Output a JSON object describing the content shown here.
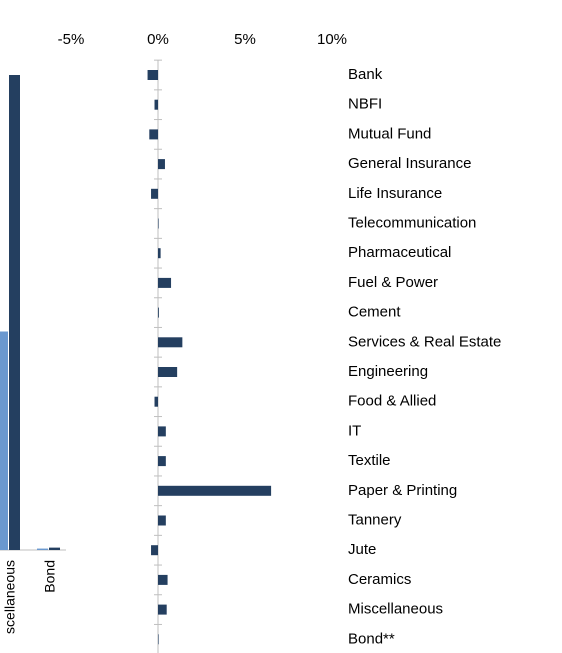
{
  "chart_data": [
    {
      "type": "hbar",
      "categories": [
        "Bank",
        "NBFI",
        "Mutual Fund",
        "General Insurance",
        "Life Insurance",
        "Telecommunication",
        "Pharmaceutical",
        "Fuel & Power",
        "Cement",
        "Services & Real Estate",
        "Engineering",
        "Food & Allied",
        "IT",
        "Textile",
        "Paper & Printing",
        "Tannery",
        "Jute",
        "Ceramics",
        "Miscellaneous",
        "Bond**"
      ],
      "values": [
        -0.6,
        -0.2,
        -0.5,
        0.4,
        -0.4,
        0,
        0.15,
        0.75,
        0.05,
        1.4,
        1.1,
        -0.2,
        0.45,
        0.45,
        6.5,
        0.45,
        -0.4,
        0.55,
        0.5,
        0
      ],
      "color": "#243f60",
      "xlim": [
        -9,
        11
      ],
      "xticks": [
        {
          "value": -5,
          "label": "-5%"
        },
        {
          "value": 0,
          "label": "0%"
        },
        {
          "value": 5,
          "label": "5%"
        },
        {
          "value": 10,
          "label": "10%"
        }
      ]
    },
    {
      "type": "bar",
      "categories": [
        "scellaneous",
        "Bond"
      ],
      "series": [
        {
          "color": "#6a98cf",
          "values": [
            46,
            0.3
          ]
        },
        {
          "color": "#243f60",
          "values": [
            100,
            0.5
          ]
        }
      ],
      "ylim": [
        0,
        100
      ]
    }
  ]
}
